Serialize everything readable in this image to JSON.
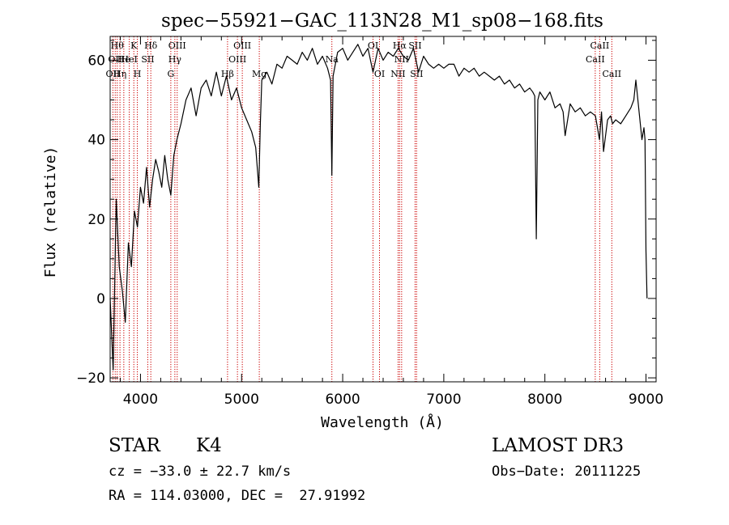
{
  "chart_data": {
    "type": "line",
    "title": "spec−55921−GAC_113N28_M1_sp08−168.fits",
    "xlabel": "Wavelength (Å)",
    "ylabel": "Flux (relative)",
    "xlim": [
      3700,
      9100
    ],
    "ylim": [
      -21,
      66
    ],
    "xticks": [
      4000,
      5000,
      6000,
      7000,
      8000,
      9000
    ],
    "xtick_labels": [
      "4000",
      "5000",
      "6000",
      "7000",
      "8000",
      "9000"
    ],
    "yticks": [
      -20,
      0,
      20,
      40,
      60
    ],
    "ytick_labels": [
      "−20",
      "0",
      "20",
      "40",
      "60"
    ],
    "grid": false,
    "series": [
      {
        "name": "spectrum",
        "color": "#000000",
        "x": [
          3700,
          3730,
          3760,
          3790,
          3820,
          3850,
          3880,
          3910,
          3940,
          3970,
          4000,
          4030,
          4060,
          4090,
          4120,
          4150,
          4180,
          4210,
          4240,
          4270,
          4300,
          4330,
          4360,
          4400,
          4450,
          4500,
          4550,
          4600,
          4650,
          4700,
          4750,
          4800,
          4850,
          4900,
          4950,
          5000,
          5050,
          5100,
          5140,
          5170,
          5185,
          5200,
          5250,
          5300,
          5350,
          5400,
          5450,
          5500,
          5550,
          5600,
          5650,
          5700,
          5750,
          5800,
          5850,
          5880,
          5893,
          5905,
          5950,
          6000,
          6050,
          6100,
          6150,
          6200,
          6250,
          6300,
          6350,
          6400,
          6450,
          6500,
          6550,
          6600,
          6650,
          6700,
          6750,
          6800,
          6850,
          6900,
          6950,
          7000,
          7050,
          7100,
          7150,
          7200,
          7250,
          7300,
          7350,
          7400,
          7450,
          7500,
          7550,
          7600,
          7650,
          7700,
          7750,
          7800,
          7850,
          7880,
          7900,
          7915,
          7930,
          7950,
          8000,
          8050,
          8100,
          8150,
          8180,
          8200,
          8250,
          8300,
          8350,
          8400,
          8450,
          8500,
          8540,
          8560,
          8580,
          8620,
          8650,
          8670,
          8700,
          8750,
          8800,
          8850,
          8880,
          8900,
          8920,
          8940,
          8960,
          8980,
          8990,
          9000,
          9010
        ],
        "y": [
          0,
          -18,
          25,
          8,
          2,
          -6,
          14,
          8,
          22,
          18,
          28,
          24,
          33,
          23,
          30,
          35,
          32,
          28,
          36,
          30,
          26,
          36,
          40,
          44,
          50,
          53,
          46,
          53,
          55,
          51,
          57,
          51,
          56,
          50,
          53,
          48,
          45,
          42,
          38,
          28,
          44,
          55,
          57,
          54,
          59,
          58,
          61,
          60,
          59,
          62,
          60,
          63,
          59,
          61,
          58,
          55,
          31,
          56,
          62,
          63,
          60,
          62,
          64,
          61,
          63,
          57,
          63,
          60,
          62,
          61,
          63,
          61,
          60,
          63,
          57,
          61,
          59,
          58,
          59,
          58,
          59,
          59,
          56,
          58,
          57,
          58,
          56,
          57,
          56,
          55,
          56,
          54,
          55,
          53,
          54,
          52,
          53,
          52,
          51,
          15,
          50,
          52,
          50,
          52,
          48,
          49,
          47,
          41,
          49,
          47,
          48,
          46,
          47,
          46,
          40,
          47,
          37,
          45,
          46,
          44,
          45,
          44,
          46,
          48,
          50,
          55,
          50,
          45,
          40,
          43,
          40,
          12,
          0
        ]
      }
    ],
    "line_color": "#cc0000",
    "line_style": "dotted",
    "spectral_lines": [
      {
        "wl": 3727,
        "label": "OII",
        "row": 2
      },
      {
        "wl": 3750,
        "label": "OII",
        "row": 1
      },
      {
        "wl": 3770,
        "label": "Hθ",
        "row": 0
      },
      {
        "wl": 3797,
        "label": "Hη",
        "row": 2
      },
      {
        "wl": 3835,
        "label": "He",
        "row": 1
      },
      {
        "wl": 3889,
        "label": "HeI",
        "row": 1
      },
      {
        "wl": 3934,
        "label": "K",
        "row": 0
      },
      {
        "wl": 3969,
        "label": "H",
        "row": 2
      },
      {
        "wl": 4072,
        "label": "SII",
        "row": 1
      },
      {
        "wl": 4102,
        "label": "Hδ",
        "row": 0
      },
      {
        "wl": 4300,
        "label": "G",
        "row": 2
      },
      {
        "wl": 4340,
        "label": "Hγ",
        "row": 1
      },
      {
        "wl": 4363,
        "label": "OIII",
        "row": 0
      },
      {
        "wl": 4861,
        "label": "Hβ",
        "row": 2
      },
      {
        "wl": 4959,
        "label": "OIII",
        "row": 1
      },
      {
        "wl": 5007,
        "label": "OIII",
        "row": 0
      },
      {
        "wl": 5175,
        "label": "Mg",
        "row": 2
      },
      {
        "wl": 5893,
        "label": "Na",
        "row": 1
      },
      {
        "wl": 6300,
        "label": "OI",
        "row": 0
      },
      {
        "wl": 6364,
        "label": "OI",
        "row": 2
      },
      {
        "wl": 6548,
        "label": "NII",
        "row": 2
      },
      {
        "wl": 6563,
        "label": "Hα",
        "row": 0
      },
      {
        "wl": 6583,
        "label": "NII",
        "row": 1
      },
      {
        "wl": 6716,
        "label": "SII",
        "row": 0
      },
      {
        "wl": 6731,
        "label": "SII",
        "row": 2
      },
      {
        "wl": 8498,
        "label": "CaII",
        "row": 1
      },
      {
        "wl": 8542,
        "label": "CaII",
        "row": 0
      },
      {
        "wl": 8662,
        "label": "CaII",
        "row": 2
      }
    ]
  },
  "info": {
    "class": "STAR",
    "subclass": "K4",
    "survey": "LAMOST DR3",
    "cz": "cz = −33.0 ± 22.7 km/s",
    "obs_date": "Obs−Date: 20111225",
    "coords": "RA = 114.03000, DEC =  27.91992"
  }
}
